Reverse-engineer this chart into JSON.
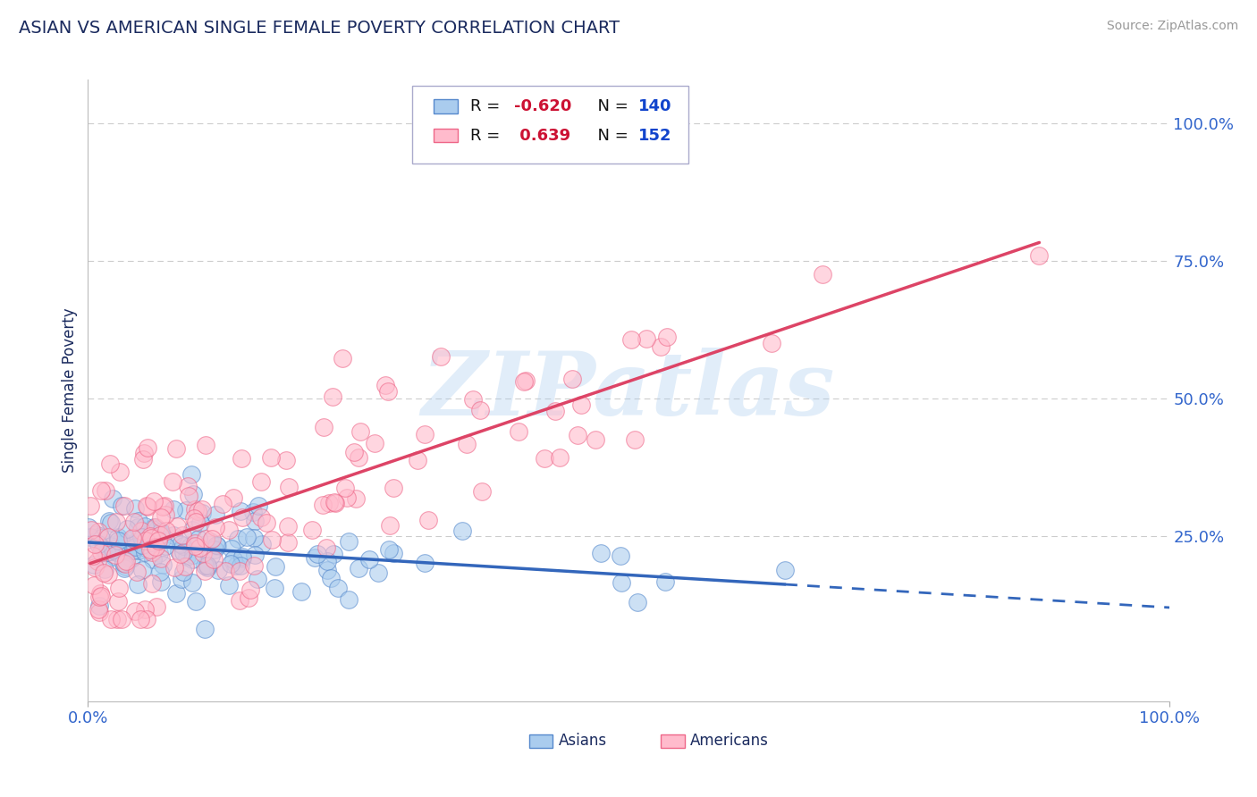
{
  "title": "ASIAN VS AMERICAN SINGLE FEMALE POVERTY CORRELATION CHART",
  "source": "Source: ZipAtlas.com",
  "ylabel": "Single Female Poverty",
  "title_fontsize": 14,
  "title_color": "#1a2a5e",
  "source_color": "#999999",
  "background_color": "#ffffff",
  "watermark_text": "ZIPatlas",
  "asian_face_color": "#aaccee",
  "asian_edge_color": "#5588cc",
  "american_face_color": "#ffbbcc",
  "american_edge_color": "#ee6688",
  "asian_line_color": "#3366bb",
  "american_line_color": "#dd4466",
  "asian_R": -0.62,
  "asian_N": 140,
  "american_R": 0.639,
  "american_N": 152,
  "legend_R_color": "#cc1133",
  "legend_N_color": "#1144cc",
  "grid_color": "#cccccc",
  "tick_color": "#3366cc",
  "xlim": [
    0.0,
    1.0
  ],
  "ylim_low": -0.05,
  "ylim_high": 1.08,
  "ytick_positions": [
    0.25,
    0.5,
    0.75,
    1.0
  ],
  "ytick_labels": [
    "25.0%",
    "50.0%",
    "75.0%",
    "100.0%"
  ],
  "xtick_positions": [
    0.0,
    1.0
  ],
  "xtick_labels": [
    "0.0%",
    "100.0%"
  ],
  "marker_size": 200,
  "marker_alpha": 0.6,
  "linewidth": 2.0
}
